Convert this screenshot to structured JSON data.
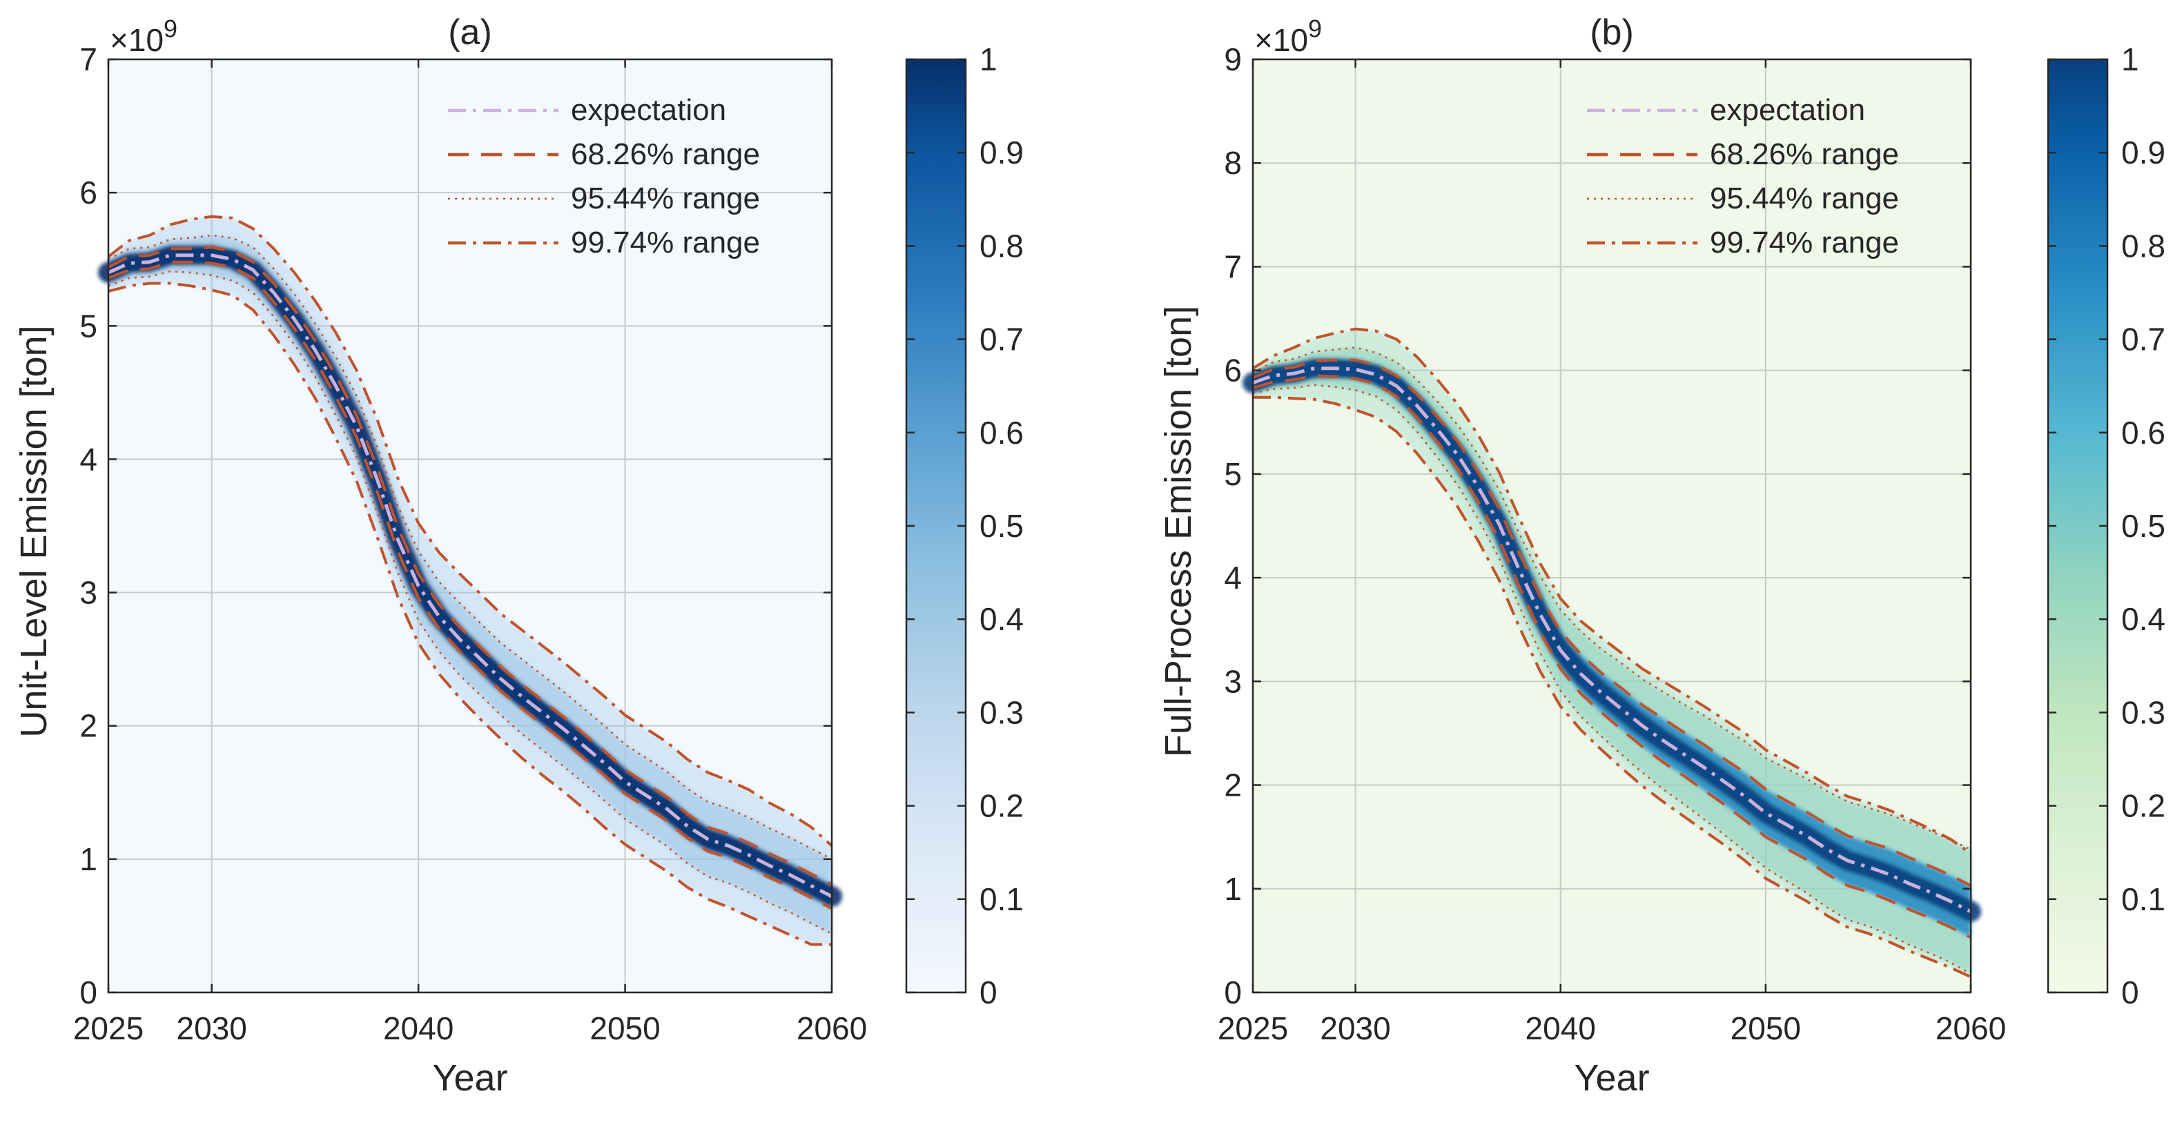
{
  "chart_data": [
    {
      "type": "heatmap",
      "title": "(a)",
      "xlabel": "Year",
      "ylabel": "Unit-Level Emission [ton]",
      "exponent_label": "×10",
      "exponent_power": "9",
      "xlim": [
        2025,
        2060
      ],
      "ylim": [
        0,
        7
      ],
      "xticks": [
        2025,
        2030,
        2040,
        2050,
        2060
      ],
      "yticks": [
        0,
        1,
        2,
        3,
        4,
        5,
        6,
        7
      ],
      "grid": true,
      "legend_position": "top-right",
      "background": "#f4f9fe",
      "colormap": "blues",
      "colorbar": {
        "min": 0,
        "max": 1,
        "ticks": [
          0,
          0.1,
          0.2,
          0.3,
          0.4,
          0.5,
          0.6,
          0.7,
          0.8,
          0.9,
          1
        ]
      },
      "x": [
        2025,
        2026,
        2027,
        2028,
        2029,
        2030,
        2031,
        2032,
        2033,
        2034,
        2035,
        2036,
        2037,
        2038,
        2039,
        2040,
        2041,
        2042,
        2043,
        2044,
        2045,
        2046,
        2047,
        2048,
        2049,
        2050,
        2051,
        2052,
        2053,
        2054,
        2055,
        2056,
        2057,
        2058,
        2059,
        2060
      ],
      "series": [
        {
          "name": "expectation",
          "style": "dashdot",
          "color": "#c9b2dc",
          "values": [
            5.4,
            5.47,
            5.48,
            5.53,
            5.53,
            5.53,
            5.5,
            5.42,
            5.25,
            5.05,
            4.82,
            4.55,
            4.25,
            3.85,
            3.4,
            3.05,
            2.82,
            2.65,
            2.5,
            2.35,
            2.22,
            2.1,
            1.98,
            1.85,
            1.72,
            1.58,
            1.48,
            1.38,
            1.25,
            1.15,
            1.1,
            1.03,
            0.95,
            0.88,
            0.8,
            0.72
          ]
        },
        {
          "name": "68.26% range",
          "style": "dash",
          "color": "#c0532b",
          "band": true,
          "lower": [
            5.36,
            5.42,
            5.43,
            5.48,
            5.48,
            5.47,
            5.44,
            5.36,
            5.18,
            4.98,
            4.75,
            4.47,
            4.17,
            3.76,
            3.31,
            2.96,
            2.73,
            2.56,
            2.41,
            2.26,
            2.13,
            2.01,
            1.89,
            1.76,
            1.63,
            1.49,
            1.39,
            1.29,
            1.16,
            1.06,
            1.01,
            0.94,
            0.86,
            0.79,
            0.71,
            0.63
          ],
          "upper": [
            5.44,
            5.52,
            5.53,
            5.58,
            5.58,
            5.59,
            5.56,
            5.48,
            5.32,
            5.12,
            4.89,
            4.63,
            4.33,
            3.94,
            3.49,
            3.14,
            2.91,
            2.74,
            2.59,
            2.44,
            2.31,
            2.19,
            2.07,
            1.94,
            1.81,
            1.67,
            1.57,
            1.47,
            1.34,
            1.24,
            1.19,
            1.12,
            1.04,
            0.97,
            0.89,
            0.81
          ]
        },
        {
          "name": "95.44% range",
          "style": "dot",
          "color": "#c0532b",
          "band": true,
          "lower": [
            5.3,
            5.36,
            5.37,
            5.41,
            5.4,
            5.38,
            5.34,
            5.25,
            5.07,
            4.86,
            4.62,
            4.33,
            4.02,
            3.6,
            3.15,
            2.79,
            2.56,
            2.38,
            2.23,
            2.08,
            1.94,
            1.82,
            1.7,
            1.57,
            1.44,
            1.3,
            1.2,
            1.1,
            0.97,
            0.87,
            0.82,
            0.75,
            0.67,
            0.6,
            0.52,
            0.44
          ],
          "upper": [
            5.5,
            5.58,
            5.59,
            5.65,
            5.66,
            5.68,
            5.66,
            5.59,
            5.43,
            5.24,
            5.02,
            4.77,
            4.48,
            4.1,
            3.65,
            3.31,
            3.08,
            2.92,
            2.77,
            2.62,
            2.5,
            2.38,
            2.26,
            2.13,
            2.0,
            1.86,
            1.76,
            1.66,
            1.53,
            1.43,
            1.38,
            1.31,
            1.23,
            1.16,
            1.08,
            1.0
          ]
        },
        {
          "name": "99.74% range",
          "style": "dashdot",
          "color": "#c0532b",
          "band": true,
          "lower": [
            5.26,
            5.3,
            5.32,
            5.32,
            5.3,
            5.27,
            5.23,
            5.12,
            4.93,
            4.71,
            4.46,
            4.16,
            3.84,
            3.42,
            2.97,
            2.62,
            2.39,
            2.21,
            2.05,
            1.9,
            1.76,
            1.63,
            1.51,
            1.38,
            1.24,
            1.11,
            1.01,
            0.91,
            0.79,
            0.7,
            0.64,
            0.57,
            0.5,
            0.43,
            0.36,
            0.36
          ],
          "upper": [
            5.52,
            5.64,
            5.68,
            5.76,
            5.8,
            5.82,
            5.81,
            5.73,
            5.58,
            5.4,
            5.19,
            4.95,
            4.67,
            4.3,
            3.86,
            3.52,
            3.3,
            3.14,
            2.99,
            2.84,
            2.72,
            2.6,
            2.48,
            2.35,
            2.22,
            2.08,
            1.98,
            1.88,
            1.75,
            1.65,
            1.59,
            1.52,
            1.42,
            1.34,
            1.24,
            1.1
          ]
        }
      ]
    },
    {
      "type": "heatmap",
      "title": "(b)",
      "xlabel": "Year",
      "ylabel": "Full-Process Emission [ton]",
      "exponent_label": "×10",
      "exponent_power": "9",
      "xlim": [
        2025,
        2060
      ],
      "ylim": [
        0,
        9
      ],
      "xticks": [
        2025,
        2030,
        2040,
        2050,
        2060
      ],
      "yticks": [
        0,
        1,
        2,
        3,
        4,
        5,
        6,
        7,
        8,
        9
      ],
      "grid": true,
      "legend_position": "top-right",
      "background": "#f1f8ea",
      "colormap": "gnbu",
      "colorbar": {
        "min": 0,
        "max": 1,
        "ticks": [
          0,
          0.1,
          0.2,
          0.3,
          0.4,
          0.5,
          0.6,
          0.7,
          0.8,
          0.9,
          1
        ]
      },
      "x": [
        2025,
        2026,
        2027,
        2028,
        2029,
        2030,
        2031,
        2032,
        2033,
        2034,
        2035,
        2036,
        2037,
        2038,
        2039,
        2040,
        2041,
        2042,
        2043,
        2044,
        2045,
        2046,
        2047,
        2048,
        2049,
        2050,
        2051,
        2052,
        2053,
        2054,
        2055,
        2056,
        2057,
        2058,
        2059,
        2060
      ],
      "series": [
        {
          "name": "expectation",
          "style": "dashdot",
          "color": "#c9b2dc",
          "values": [
            5.88,
            5.95,
            5.97,
            6.02,
            6.02,
            6.01,
            5.96,
            5.85,
            5.66,
            5.43,
            5.18,
            4.87,
            4.52,
            4.07,
            3.65,
            3.3,
            3.07,
            2.89,
            2.73,
            2.57,
            2.43,
            2.3,
            2.17,
            2.03,
            1.89,
            1.73,
            1.62,
            1.51,
            1.38,
            1.27,
            1.21,
            1.14,
            1.05,
            0.97,
            0.88,
            0.78
          ]
        },
        {
          "name": "68.26% range",
          "style": "dash",
          "color": "#c0532b",
          "band": true,
          "lower": [
            5.83,
            5.89,
            5.91,
            5.95,
            5.94,
            5.92,
            5.87,
            5.75,
            5.55,
            5.31,
            5.05,
            4.73,
            4.37,
            3.91,
            3.48,
            3.12,
            2.88,
            2.7,
            2.53,
            2.37,
            2.22,
            2.09,
            1.95,
            1.81,
            1.66,
            1.5,
            1.39,
            1.28,
            1.14,
            1.03,
            0.97,
            0.89,
            0.8,
            0.72,
            0.63,
            0.53
          ],
          "upper": [
            5.93,
            6.01,
            6.03,
            6.09,
            6.1,
            6.1,
            6.05,
            5.95,
            5.77,
            5.55,
            5.31,
            5.01,
            4.67,
            4.23,
            3.82,
            3.48,
            3.26,
            3.08,
            2.93,
            2.77,
            2.64,
            2.51,
            2.39,
            2.25,
            2.12,
            1.96,
            1.85,
            1.74,
            1.62,
            1.51,
            1.45,
            1.39,
            1.3,
            1.22,
            1.13,
            1.03
          ]
        },
        {
          "name": "95.44% range",
          "style": "dot",
          "color": "#c0532b",
          "band": true,
          "lower": [
            5.78,
            5.82,
            5.83,
            5.86,
            5.84,
            5.81,
            5.75,
            5.62,
            5.41,
            5.16,
            4.89,
            4.56,
            4.19,
            3.72,
            3.28,
            2.91,
            2.66,
            2.47,
            2.29,
            2.12,
            1.96,
            1.82,
            1.67,
            1.52,
            1.36,
            1.2,
            1.08,
            0.96,
            0.82,
            0.7,
            0.64,
            0.56,
            0.46,
            0.38,
            0.29,
            0.18
          ],
          "upper": [
            5.98,
            6.08,
            6.11,
            6.18,
            6.2,
            6.22,
            6.17,
            6.08,
            5.91,
            5.7,
            5.47,
            5.18,
            4.85,
            4.42,
            4.02,
            3.69,
            3.48,
            3.31,
            3.17,
            3.02,
            2.9,
            2.78,
            2.67,
            2.54,
            2.42,
            2.26,
            2.16,
            2.06,
            1.94,
            1.84,
            1.78,
            1.72,
            1.64,
            1.56,
            1.47,
            1.38
          ]
        },
        {
          "name": "99.74% range",
          "style": "dashdot",
          "color": "#c0532b",
          "band": true,
          "lower": [
            5.74,
            5.74,
            5.73,
            5.72,
            5.68,
            5.62,
            5.55,
            5.41,
            5.2,
            4.95,
            4.68,
            4.35,
            3.98,
            3.52,
            3.1,
            2.76,
            2.53,
            2.34,
            2.16,
            1.99,
            1.84,
            1.7,
            1.56,
            1.42,
            1.27,
            1.1,
            0.99,
            0.88,
            0.74,
            0.63,
            0.57,
            0.49,
            0.4,
            0.32,
            0.24,
            0.15
          ],
          "upper": [
            6.02,
            6.14,
            6.22,
            6.31,
            6.36,
            6.4,
            6.38,
            6.3,
            6.13,
            5.91,
            5.67,
            5.37,
            5.02,
            4.57,
            4.14,
            3.8,
            3.58,
            3.42,
            3.27,
            3.12,
            3.0,
            2.88,
            2.76,
            2.63,
            2.5,
            2.34,
            2.23,
            2.12,
            2.0,
            1.89,
            1.83,
            1.76,
            1.67,
            1.58,
            1.48,
            1.34
          ]
        }
      ]
    }
  ]
}
